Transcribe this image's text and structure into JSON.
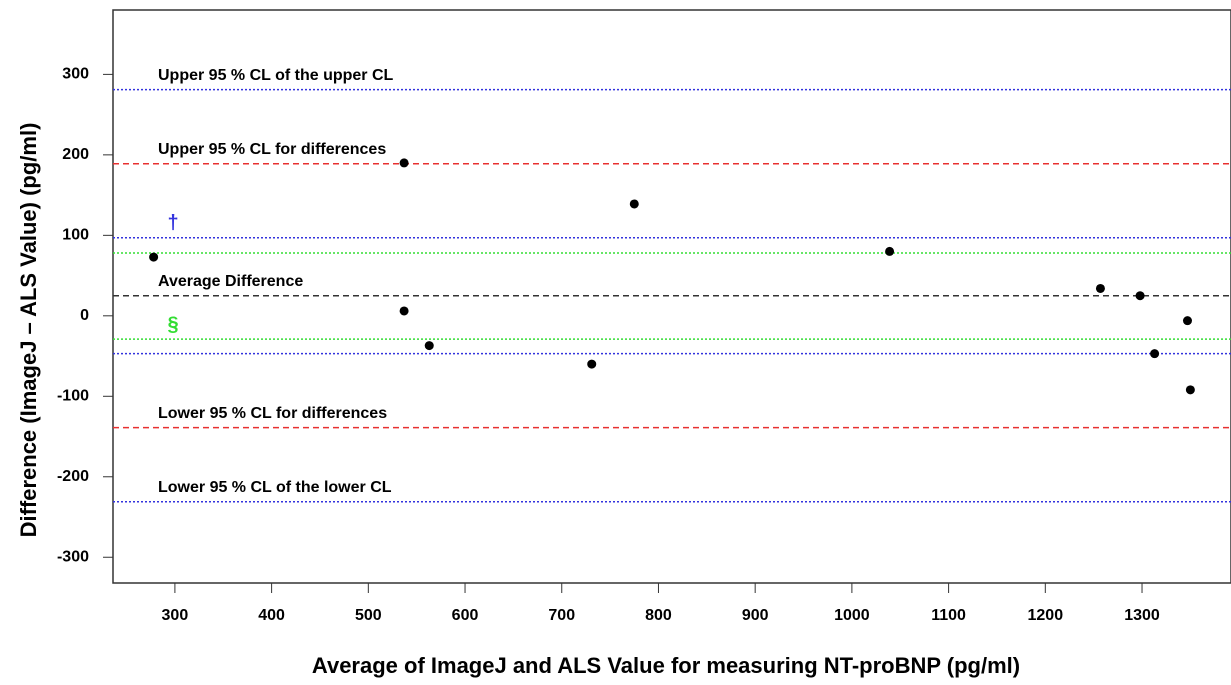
{
  "chart_data": {
    "type": "scatter",
    "xlabel": "Average of ImageJ and ALS Value for measuring NT-proBNP (pg/ml)",
    "ylabel": "Difference (ImageJ – ALS Value) (pg/ml)",
    "xlim": [
      236,
      1392
    ],
    "ylim": [
      -332,
      380
    ],
    "xticks": [
      300,
      400,
      500,
      600,
      700,
      800,
      900,
      1000,
      1100,
      1200,
      1300
    ],
    "yticks": [
      -300,
      -200,
      -100,
      0,
      100,
      200,
      300
    ],
    "series": [
      {
        "color": "#000000",
        "x": [
          278,
          537,
          537,
          563,
          731,
          775,
          1039,
          1257,
          1298,
          1313,
          1347,
          1350
        ],
        "y": [
          73,
          190,
          6,
          -37,
          -60,
          139,
          80,
          34,
          25,
          -47,
          -6,
          -92
        ]
      }
    ],
    "reference_lines": [
      {
        "label": "Upper 95 % CL of the upper CL",
        "value": 281,
        "color": "#3333dd",
        "dash": "dotted"
      },
      {
        "label": "Upper 95 % CL for differences",
        "value": 189,
        "color": "#e83030",
        "dash": "dashed"
      },
      {
        "label": "†",
        "value": 97,
        "color": "#3333dd",
        "dash": "dotted"
      },
      {
        "value": 78,
        "color": "#33dd33",
        "dash": "dotted"
      },
      {
        "label": "Average Difference",
        "value": 25,
        "color": "#333333",
        "dash": "dashed"
      },
      {
        "label": "§",
        "value": -29,
        "color": "#33dd33",
        "dash": "dotted",
        "label_below": true
      },
      {
        "value": -47,
        "color": "#3333dd",
        "dash": "dotted"
      },
      {
        "label": "Lower 95 % CL for differences",
        "value": -139,
        "color": "#e83030",
        "dash": "dashed"
      },
      {
        "label": "Lower 95 % CL of the lower CL",
        "value": -231,
        "color": "#3333dd",
        "dash": "dotted"
      }
    ]
  }
}
